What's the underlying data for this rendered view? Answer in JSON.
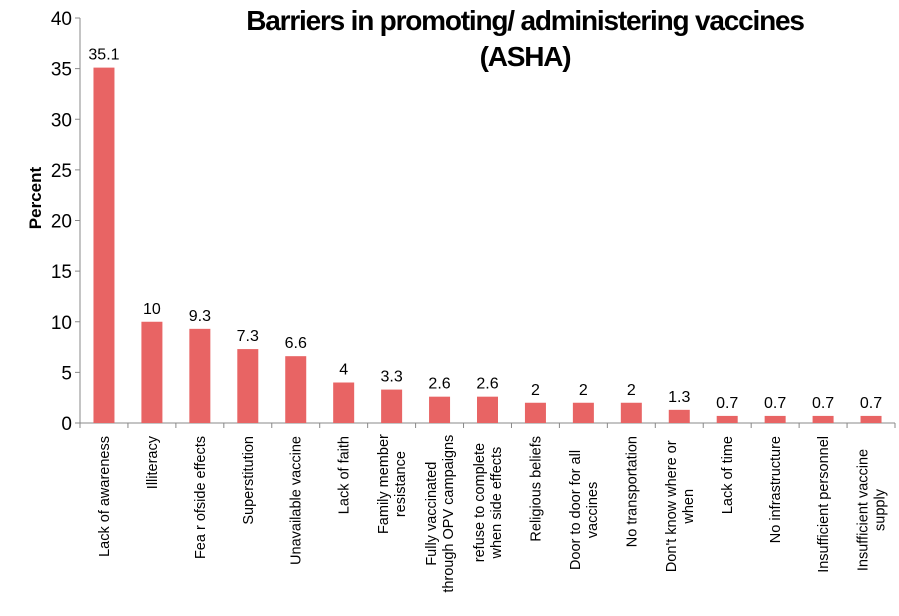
{
  "chart_data": {
    "type": "bar",
    "title": "Barriers in promoting/ administering vaccines",
    "subtitle": "(ASHA)",
    "xlabel": "",
    "ylabel": "Percent",
    "ylim": [
      0,
      40
    ],
    "yticks": [
      0,
      5,
      10,
      15,
      20,
      25,
      30,
      35,
      40
    ],
    "grid": false,
    "legend": "none",
    "bar_color": "#E86464",
    "categories": [
      [
        "Lack of awareness"
      ],
      [
        "Illiteracy"
      ],
      [
        "Fea r ofside effects"
      ],
      [
        "Superstitution"
      ],
      [
        "Unavailable vaccine"
      ],
      [
        "Lack of faith"
      ],
      [
        "Family member",
        "resistance"
      ],
      [
        "Fully vaccinated",
        "through OPV campaigns"
      ],
      [
        "refuse to complete",
        "when side effects"
      ],
      [
        "Religious beliefs"
      ],
      [
        "Door to door for all",
        "vaccines"
      ],
      [
        "No transportation"
      ],
      [
        "Don't know where or",
        "when"
      ],
      [
        "Lack of time"
      ],
      [
        "No infrastructure"
      ],
      [
        "Insufficient personnel"
      ],
      [
        "Insufficient vaccine",
        "supply"
      ]
    ],
    "values": [
      35.1,
      10,
      9.3,
      7.3,
      6.6,
      4,
      3.3,
      2.6,
      2.6,
      2,
      2,
      2,
      1.3,
      0.7,
      0.7,
      0.7,
      0.7
    ],
    "data_labels": [
      "35.1",
      "10",
      "9.3",
      "7.3",
      "6.6",
      "4",
      "3.3",
      "2.6",
      "2.6",
      "2",
      "2",
      "2",
      "1.3",
      "0.7",
      "0.7",
      "0.7",
      "0.7"
    ]
  }
}
